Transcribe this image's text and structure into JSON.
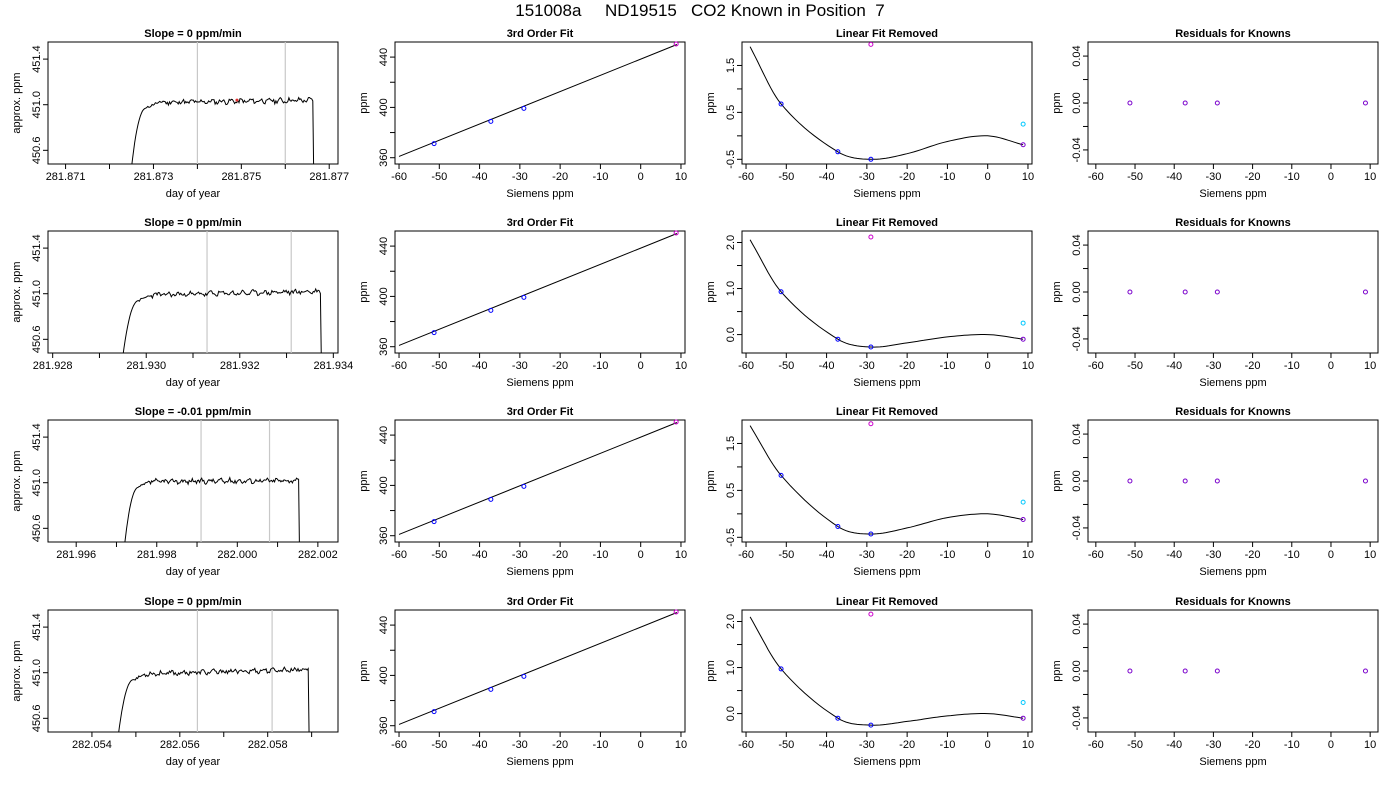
{
  "figure_title": "151008a     ND19515   CO2 Known in Position  7",
  "colors": {
    "trace": "#000000",
    "grid": "#c8c8c8",
    "blue": "#0000ff",
    "magenta": "#cc00cc",
    "cyan": "#00c8ff",
    "purple": "#7a00cc"
  },
  "chart_data": [
    {
      "id": "r1-time",
      "type": "line",
      "title": "Slope =  0  ppm/min",
      "xlabel": "day of year",
      "ylabel": "approx. ppm",
      "xlim": [
        281.8706,
        281.8772
      ],
      "ylim": [
        450.48,
        451.55
      ],
      "xticks": [
        281.871,
        281.872,
        281.873,
        281.874,
        281.875,
        281.876,
        281.877
      ],
      "xticklabels": [
        "281.871",
        "",
        "281.873",
        "",
        "281.875",
        "",
        "281.877"
      ],
      "yticks": [
        450.6,
        451.0,
        451.4
      ],
      "yticklabels": [
        "450.6",
        "451.0",
        "451.4"
      ],
      "vlines": [
        281.874,
        281.876
      ],
      "trace": {
        "start": 281.8725,
        "end": 281.8767,
        "rise_y": 450.45,
        "level": 451.02,
        "end_level": 451.04,
        "seed": 11
      },
      "marker": {
        "x": 281.8749,
        "y": 451.04
      }
    },
    {
      "id": "r1-fit",
      "type": "scatter",
      "title": "3rd Order Fit",
      "xlabel": "Siemens ppm",
      "ylabel": "ppm",
      "xlim": [
        -61,
        11
      ],
      "ylim": [
        355,
        452
      ],
      "xticks": [
        -60,
        -50,
        -40,
        -30,
        -20,
        -10,
        0,
        10
      ],
      "xticklabels": [
        "-60",
        "-50",
        "-40",
        "-30",
        "-20",
        "-10",
        "0",
        "10"
      ],
      "yticks": [
        360,
        380,
        400,
        420,
        440
      ],
      "yticklabels": [
        "360",
        "",
        "400",
        "",
        "440"
      ],
      "line": {
        "x": [
          -60,
          9
        ],
        "y": [
          361,
          450
        ]
      },
      "points": {
        "x": [
          -51.3,
          -37.2,
          -29.0
        ],
        "y": [
          371.2,
          388.9,
          399.2
        ]
      },
      "open_points": [
        {
          "x": 8.8,
          "y": 450.5
        }
      ]
    },
    {
      "id": "r1-lin",
      "type": "scatter",
      "title": "Linear Fit Removed",
      "xlabel": "Siemens ppm",
      "ylabel": "ppm",
      "xlim": [
        -61,
        11
      ],
      "ylim": [
        -0.6,
        2.0
      ],
      "xticks": [
        -60,
        -50,
        -40,
        -30,
        -20,
        -10,
        0,
        10
      ],
      "xticklabels": [
        "-60",
        "-50",
        "-40",
        "-30",
        "-20",
        "-10",
        "0",
        "10"
      ],
      "yticks": [
        -0.5,
        0.0,
        0.5,
        1.0,
        1.5
      ],
      "yticklabels": [
        "-0.5",
        "",
        "0.5",
        "",
        "1.5"
      ],
      "curve": {
        "x": [
          -59,
          -51.3,
          -37.2,
          -29.0,
          -20.0,
          -10.0,
          0.0,
          8.8
        ],
        "y": [
          1.9,
          0.68,
          -0.34,
          -0.5,
          -0.38,
          -0.12,
          0.0,
          -0.19
        ]
      },
      "points": {
        "x": [
          -51.3,
          -37.2,
          -29.0
        ],
        "y": [
          0.68,
          -0.34,
          -0.5
        ]
      },
      "open_points": [
        {
          "x": -29.0,
          "y": 1.95,
          "c": "magenta"
        },
        {
          "x": 8.8,
          "y": 0.25,
          "c": "cyan"
        },
        {
          "x": 8.8,
          "y": -0.19,
          "c": "purple"
        }
      ]
    },
    {
      "id": "r1-res",
      "type": "scatter",
      "title": "Residuals for Knowns",
      "xlabel": "Siemens ppm",
      "ylabel": "ppm",
      "xlim": [
        -62,
        12
      ],
      "ylim": [
        -0.052,
        0.052
      ],
      "xticks": [
        -60,
        -50,
        -40,
        -30,
        -20,
        -10,
        0,
        10
      ],
      "xticklabels": [
        "-60",
        "-50",
        "-40",
        "-30",
        "-20",
        "-10",
        "0",
        "10"
      ],
      "yticks": [
        -0.04,
        -0.02,
        0.0,
        0.02,
        0.04
      ],
      "yticklabels": [
        "-0.04",
        "",
        "0.00",
        "",
        "0.04"
      ],
      "open_points": [
        {
          "x": -51.3,
          "y": 0
        },
        {
          "x": -37.2,
          "y": 0
        },
        {
          "x": -29.0,
          "y": 0
        },
        {
          "x": 8.8,
          "y": 0
        }
      ]
    },
    {
      "id": "r2-time",
      "type": "line",
      "title": "Slope =  0  ppm/min",
      "xlabel": "day of year",
      "ylabel": "approx. ppm",
      "xlim": [
        281.9279,
        281.9341
      ],
      "ylim": [
        450.48,
        451.55
      ],
      "xticks": [
        281.928,
        281.929,
        281.93,
        281.931,
        281.932,
        281.933,
        281.934
      ],
      "xticklabels": [
        "281.928",
        "",
        "281.930",
        "",
        "281.932",
        "",
        "281.934"
      ],
      "yticks": [
        450.6,
        451.0,
        451.4
      ],
      "yticklabels": [
        "450.6",
        "451.0",
        "451.4"
      ],
      "vlines": [
        281.9313,
        281.9331
      ],
      "trace": {
        "start": 281.9295,
        "end": 281.9338,
        "rise_y": 450.45,
        "level": 450.99,
        "end_level": 451.02,
        "seed": 23
      },
      "marker": null
    },
    {
      "id": "r2-fit",
      "type": "scatter",
      "title": "3rd Order Fit",
      "xlabel": "Siemens ppm",
      "ylabel": "ppm",
      "xlim": [
        -61,
        11
      ],
      "ylim": [
        355,
        452
      ],
      "xticks": [
        -60,
        -50,
        -40,
        -30,
        -20,
        -10,
        0,
        10
      ],
      "xticklabels": [
        "-60",
        "-50",
        "-40",
        "-30",
        "-20",
        "-10",
        "0",
        "10"
      ],
      "yticks": [
        360,
        380,
        400,
        420,
        440
      ],
      "yticklabels": [
        "360",
        "",
        "400",
        "",
        "440"
      ],
      "line": {
        "x": [
          -60,
          9
        ],
        "y": [
          361,
          450
        ]
      },
      "points": {
        "x": [
          -51.3,
          -37.2,
          -29.0
        ],
        "y": [
          371.2,
          388.9,
          399.2
        ]
      },
      "open_points": [
        {
          "x": 8.8,
          "y": 450.5
        }
      ]
    },
    {
      "id": "r2-lin",
      "type": "scatter",
      "title": "Linear Fit Removed",
      "xlabel": "Siemens ppm",
      "ylabel": "ppm",
      "xlim": [
        -61,
        11
      ],
      "ylim": [
        -0.4,
        2.25
      ],
      "xticks": [
        -60,
        -50,
        -40,
        -30,
        -20,
        -10,
        0,
        10
      ],
      "xticklabels": [
        "-60",
        "-50",
        "-40",
        "-30",
        "-20",
        "-10",
        "0",
        "10"
      ],
      "yticks": [
        0.0,
        0.5,
        1.0,
        1.5,
        2.0
      ],
      "yticklabels": [
        "0.0",
        "",
        "1.0",
        "",
        "2.0"
      ],
      "curve": {
        "x": [
          -59,
          -51.3,
          -37.2,
          -29.0,
          -20.0,
          -10.0,
          0.0,
          8.8
        ],
        "y": [
          2.06,
          0.93,
          -0.1,
          -0.27,
          -0.18,
          -0.05,
          0.0,
          -0.1
        ]
      },
      "points": {
        "x": [
          -51.3,
          -37.2,
          -29.0
        ],
        "y": [
          0.93,
          -0.1,
          -0.27
        ]
      },
      "open_points": [
        {
          "x": -29.0,
          "y": 2.12,
          "c": "magenta"
        },
        {
          "x": 8.8,
          "y": 0.25,
          "c": "cyan"
        },
        {
          "x": 8.8,
          "y": -0.1,
          "c": "purple"
        }
      ]
    },
    {
      "id": "r2-res",
      "type": "scatter",
      "title": "Residuals for Knowns",
      "xlabel": "Siemens ppm",
      "ylabel": "ppm",
      "xlim": [
        -62,
        12
      ],
      "ylim": [
        -0.052,
        0.052
      ],
      "xticks": [
        -60,
        -50,
        -40,
        -30,
        -20,
        -10,
        0,
        10
      ],
      "xticklabels": [
        "-60",
        "-50",
        "-40",
        "-30",
        "-20",
        "-10",
        "0",
        "10"
      ],
      "yticks": [
        -0.04,
        -0.02,
        0.0,
        0.02,
        0.04
      ],
      "yticklabels": [
        "-0.04",
        "",
        "0.00",
        "",
        "0.04"
      ],
      "open_points": [
        {
          "x": -51.3,
          "y": 0
        },
        {
          "x": -37.2,
          "y": 0
        },
        {
          "x": -29.0,
          "y": 0
        },
        {
          "x": 8.8,
          "y": 0
        }
      ]
    },
    {
      "id": "r3-time",
      "type": "line",
      "title": "Slope =  -0.01  ppm/min",
      "xlabel": "day of year",
      "ylabel": "approx. ppm",
      "xlim": [
        281.9953,
        282.0025
      ],
      "ylim": [
        450.48,
        451.55
      ],
      "xticks": [
        281.996,
        281.997,
        281.998,
        281.999,
        282.0,
        282.001,
        282.002
      ],
      "xticklabels": [
        "281.996",
        "",
        "281.998",
        "",
        "282.000",
        "",
        "282.002"
      ],
      "yticks": [
        450.6,
        451.0,
        451.4
      ],
      "yticklabels": [
        "450.6",
        "451.0",
        "451.4"
      ],
      "vlines": [
        281.9991,
        282.0008
      ],
      "trace": {
        "start": 281.9972,
        "end": 282.0016,
        "rise_y": 450.45,
        "level": 451.01,
        "end_level": 451.02,
        "seed": 37
      },
      "marker": null
    },
    {
      "id": "r3-fit",
      "type": "scatter",
      "title": "3rd Order Fit",
      "xlabel": "Siemens ppm",
      "ylabel": "ppm",
      "xlim": [
        -61,
        11
      ],
      "ylim": [
        355,
        452
      ],
      "xticks": [
        -60,
        -50,
        -40,
        -30,
        -20,
        -10,
        0,
        10
      ],
      "xticklabels": [
        "-60",
        "-50",
        "-40",
        "-30",
        "-20",
        "-10",
        "0",
        "10"
      ],
      "yticks": [
        360,
        380,
        400,
        420,
        440
      ],
      "yticklabels": [
        "360",
        "",
        "400",
        "",
        "440"
      ],
      "line": {
        "x": [
          -60,
          9
        ],
        "y": [
          361,
          450
        ]
      },
      "points": {
        "x": [
          -51.3,
          -37.2,
          -29.0
        ],
        "y": [
          371.2,
          388.9,
          399.2
        ]
      },
      "open_points": [
        {
          "x": 8.8,
          "y": 450.5
        }
      ]
    },
    {
      "id": "r3-lin",
      "type": "scatter",
      "title": "Linear Fit Removed",
      "xlabel": "Siemens ppm",
      "ylabel": "ppm",
      "xlim": [
        -61,
        11
      ],
      "ylim": [
        -0.6,
        2.0
      ],
      "xticks": [
        -60,
        -50,
        -40,
        -30,
        -20,
        -10,
        0,
        10
      ],
      "xticklabels": [
        "-60",
        "-50",
        "-40",
        "-30",
        "-20",
        "-10",
        "0",
        "10"
      ],
      "yticks": [
        -0.5,
        0.0,
        0.5,
        1.0,
        1.5
      ],
      "yticklabels": [
        "-0.5",
        "",
        "0.5",
        "",
        "1.5"
      ],
      "curve": {
        "x": [
          -59,
          -51.3,
          -37.2,
          -29.0,
          -20.0,
          -10.0,
          0.0,
          8.8
        ],
        "y": [
          1.88,
          0.82,
          -0.27,
          -0.43,
          -0.3,
          -0.08,
          0.0,
          -0.12
        ]
      },
      "points": {
        "x": [
          -51.3,
          -37.2,
          -29.0
        ],
        "y": [
          0.82,
          -0.27,
          -0.43
        ]
      },
      "open_points": [
        {
          "x": -29.0,
          "y": 1.92,
          "c": "magenta"
        },
        {
          "x": 8.8,
          "y": 0.25,
          "c": "cyan"
        },
        {
          "x": 8.8,
          "y": -0.12,
          "c": "purple"
        }
      ]
    },
    {
      "id": "r3-res",
      "type": "scatter",
      "title": "Residuals for Knowns",
      "xlabel": "Siemens ppm",
      "ylabel": "ppm",
      "xlim": [
        -62,
        12
      ],
      "ylim": [
        -0.052,
        0.052
      ],
      "xticks": [
        -60,
        -50,
        -40,
        -30,
        -20,
        -10,
        0,
        10
      ],
      "xticklabels": [
        "-60",
        "-50",
        "-40",
        "-30",
        "-20",
        "-10",
        "0",
        "10"
      ],
      "yticks": [
        -0.04,
        -0.02,
        0.0,
        0.02,
        0.04
      ],
      "yticklabels": [
        "-0.04",
        "",
        "0.00",
        "",
        "0.04"
      ],
      "open_points": [
        {
          "x": -51.3,
          "y": 0
        },
        {
          "x": -37.2,
          "y": 0
        },
        {
          "x": -29.0,
          "y": 0
        },
        {
          "x": 8.8,
          "y": 0
        }
      ]
    },
    {
      "id": "r4-time",
      "type": "line",
      "title": "Slope =  0  ppm/min",
      "xlabel": "day of year",
      "ylabel": "approx. ppm",
      "xlim": [
        282.053,
        282.0596
      ],
      "ylim": [
        450.48,
        451.55
      ],
      "xticks": [
        282.054,
        282.055,
        282.056,
        282.057,
        282.058,
        282.059
      ],
      "xticklabels": [
        "282.054",
        "",
        "282.056",
        "",
        "282.058",
        ""
      ],
      "yticks": [
        450.6,
        451.0,
        451.4
      ],
      "yticklabels": [
        "450.6",
        "451.0",
        "451.4"
      ],
      "vlines": [
        282.0564,
        282.0581
      ],
      "trace": {
        "start": 282.0546,
        "end": 282.059,
        "rise_y": 450.45,
        "level": 450.99,
        "end_level": 451.03,
        "seed": 53
      },
      "marker": null
    },
    {
      "id": "r4-fit",
      "type": "scatter",
      "title": "3rd Order Fit",
      "xlabel": "Siemens ppm",
      "ylabel": "ppm",
      "xlim": [
        -61,
        11
      ],
      "ylim": [
        355,
        452
      ],
      "xticks": [
        -60,
        -50,
        -40,
        -30,
        -20,
        -10,
        0,
        10
      ],
      "xticklabels": [
        "-60",
        "-50",
        "-40",
        "-30",
        "-20",
        "-10",
        "0",
        "10"
      ],
      "yticks": [
        360,
        380,
        400,
        420,
        440
      ],
      "yticklabels": [
        "360",
        "",
        "400",
        "",
        "440"
      ],
      "line": {
        "x": [
          -60,
          9
        ],
        "y": [
          361,
          450
        ]
      },
      "points": {
        "x": [
          -51.3,
          -37.2,
          -29.0
        ],
        "y": [
          371.2,
          388.9,
          399.2
        ]
      },
      "open_points": [
        {
          "x": 8.8,
          "y": 450.5
        }
      ]
    },
    {
      "id": "r4-lin",
      "type": "scatter",
      "title": "Linear Fit Removed",
      "xlabel": "Siemens ppm",
      "ylabel": "ppm",
      "xlim": [
        -61,
        11
      ],
      "ylim": [
        -0.4,
        2.25
      ],
      "xticks": [
        -60,
        -50,
        -40,
        -30,
        -20,
        -10,
        0,
        10
      ],
      "xticklabels": [
        "-60",
        "-50",
        "-40",
        "-30",
        "-20",
        "-10",
        "0",
        "10"
      ],
      "yticks": [
        0.0,
        0.5,
        1.0,
        1.5,
        2.0
      ],
      "yticklabels": [
        "0.0",
        "",
        "1.0",
        "",
        "2.0"
      ],
      "curve": {
        "x": [
          -59,
          -51.3,
          -37.2,
          -29.0,
          -20.0,
          -10.0,
          0.0,
          8.8
        ],
        "y": [
          2.1,
          0.97,
          -0.1,
          -0.25,
          -0.17,
          -0.05,
          0.0,
          -0.1
        ]
      },
      "points": {
        "x": [
          -51.3,
          -37.2,
          -29.0
        ],
        "y": [
          0.97,
          -0.1,
          -0.25
        ]
      },
      "open_points": [
        {
          "x": -29.0,
          "y": 2.16,
          "c": "magenta"
        },
        {
          "x": 8.8,
          "y": 0.24,
          "c": "cyan"
        },
        {
          "x": 8.8,
          "y": -0.1,
          "c": "purple"
        }
      ]
    },
    {
      "id": "r4-res",
      "type": "scatter",
      "title": "Residuals for Knowns",
      "xlabel": "Siemens ppm",
      "ylabel": "ppm",
      "xlim": [
        -62,
        12
      ],
      "ylim": [
        -0.052,
        0.052
      ],
      "xticks": [
        -60,
        -50,
        -40,
        -30,
        -20,
        -10,
        0,
        10
      ],
      "xticklabels": [
        "-60",
        "-50",
        "-40",
        "-30",
        "-20",
        "-10",
        "0",
        "10"
      ],
      "yticks": [
        -0.04,
        -0.02,
        0.0,
        0.02,
        0.04
      ],
      "yticklabels": [
        "-0.04",
        "",
        "0.00",
        "",
        "0.04"
      ],
      "open_points": [
        {
          "x": -51.3,
          "y": 0
        },
        {
          "x": -37.2,
          "y": 0
        },
        {
          "x": -29.0,
          "y": 0
        },
        {
          "x": 8.8,
          "y": 0
        }
      ]
    }
  ]
}
